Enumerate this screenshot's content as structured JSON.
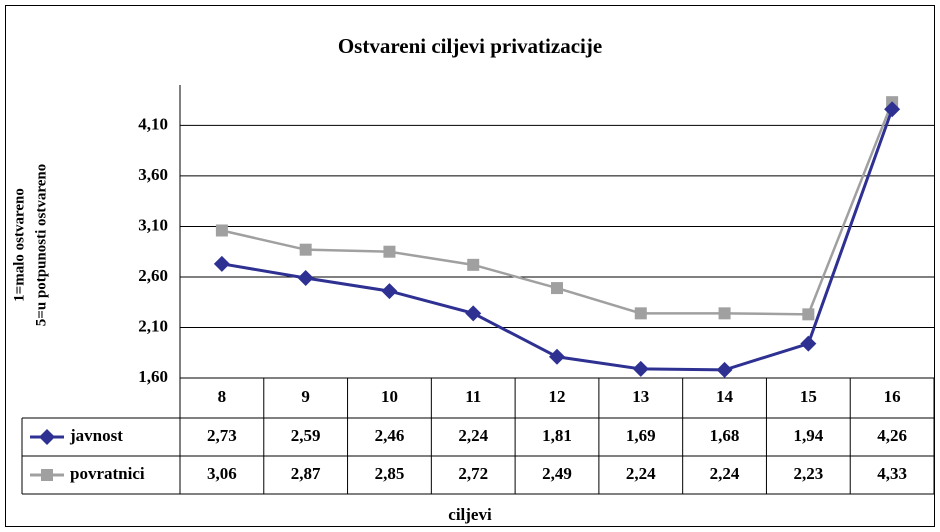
{
  "chart_data": {
    "type": "line",
    "title": "Ostvareni ciljevi privatizacije",
    "x_label": "ciljevi",
    "y_label": [
      "1=malo ostvareno",
      "5=u potpunosti ostvareno"
    ],
    "categories": [
      "8",
      "9",
      "10",
      "11",
      "12",
      "13",
      "14",
      "15",
      "16"
    ],
    "series": [
      {
        "name": "javnost",
        "color": "#2e3192",
        "marker": "diamond",
        "values": [
          2.73,
          2.59,
          2.46,
          2.24,
          1.81,
          1.69,
          1.68,
          1.94,
          4.26
        ],
        "value_labels": [
          "2,73",
          "2,59",
          "2,46",
          "2,24",
          "1,81",
          "1,69",
          "1,68",
          "1,94",
          "4,26"
        ]
      },
      {
        "name": "povratnici",
        "color": "#a0a0a0",
        "marker": "square",
        "values": [
          3.06,
          2.87,
          2.85,
          2.72,
          2.49,
          2.24,
          2.24,
          2.23,
          4.33
        ],
        "value_labels": [
          "3,06",
          "2,87",
          "2,85",
          "2,72",
          "2,49",
          "2,24",
          "2,24",
          "2,23",
          "4,33"
        ]
      }
    ],
    "ylim": [
      1.6,
      4.5
    ],
    "yticks": [
      {
        "value": 1.6,
        "label": "1,60"
      },
      {
        "value": 2.1,
        "label": "2,10"
      },
      {
        "value": 2.6,
        "label": "2,60"
      },
      {
        "value": 3.1,
        "label": "3,10"
      },
      {
        "value": 3.6,
        "label": "3,60"
      },
      {
        "value": 4.1,
        "label": "4,10"
      }
    ],
    "grid": true
  }
}
